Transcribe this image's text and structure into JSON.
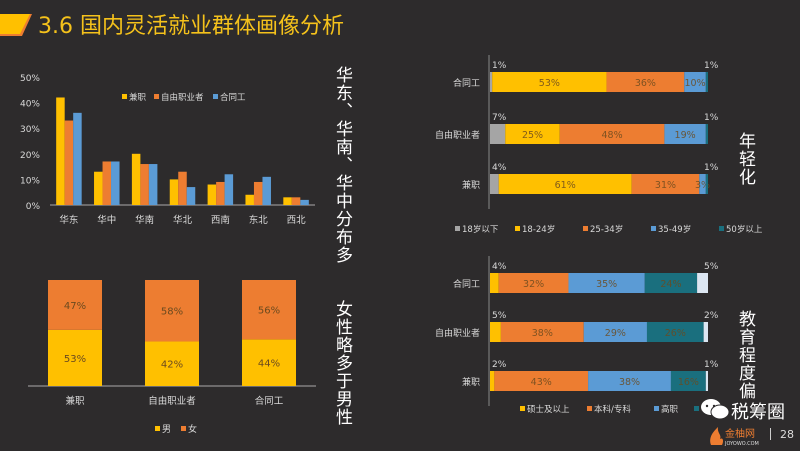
{
  "header": {
    "title": "3.6 国内灵活就业群体画像分析"
  },
  "side_notes": {
    "region": "华东、华南、华中分布多",
    "age": "年轻化",
    "gender": "女性略多于男性",
    "education": "教育程度偏"
  },
  "colors": {
    "yellow": "#FFC000",
    "orange": "#ED7D31",
    "blue": "#5B9BD5",
    "teal": "#1A6F7E",
    "gray": "#A5A5A5",
    "light": "#DCE6F2",
    "bg": "#2d2b2c",
    "title": "#f5c21b"
  },
  "footer": {
    "watermark": "税筹圈",
    "logo": "金柚网",
    "logo_sub": "JOYOWO.COM",
    "page": "28"
  },
  "chart_data": [
    {
      "type": "bar",
      "title": "",
      "categories": [
        "华东",
        "华中",
        "华南",
        "华北",
        "西南",
        "东北",
        "西北"
      ],
      "series": [
        {
          "name": "兼职",
          "values": [
            42,
            13,
            20,
            10,
            8,
            4,
            3
          ]
        },
        {
          "name": "自由职业者",
          "values": [
            33,
            17,
            16,
            13,
            9,
            9,
            3
          ]
        },
        {
          "name": "合同工",
          "values": [
            36,
            17,
            16,
            7,
            12,
            11,
            2
          ]
        }
      ],
      "yticks": [
        "0%",
        "10%",
        "20%",
        "30%",
        "40%",
        "50%"
      ],
      "ylim": [
        0,
        50
      ],
      "legend": "top-right"
    },
    {
      "type": "bar",
      "orientation": "horizontal-stacked",
      "categories": [
        "合同工",
        "自由职业者",
        "兼职"
      ],
      "series": [
        {
          "name": "18岁以下",
          "values": [
            1,
            7,
            4
          ]
        },
        {
          "name": "18-24岁",
          "values": [
            53,
            25,
            61
          ]
        },
        {
          "name": "25-34岁",
          "values": [
            36,
            48,
            31
          ]
        },
        {
          "name": "35-49岁",
          "values": [
            10,
            19,
            3
          ]
        },
        {
          "name": "50岁以上",
          "values": [
            1,
            1,
            1
          ]
        }
      ],
      "labels": [
        [
          "1%",
          "53%",
          "36%",
          "10%",
          "1%"
        ],
        [
          "7%",
          "25%",
          "48%",
          "19%",
          "1%"
        ],
        [
          "4%",
          "61%",
          "31%",
          "3%",
          "1%"
        ]
      ],
      "legend": "bottom"
    },
    {
      "type": "bar",
      "orientation": "vertical-stacked",
      "categories": [
        "兼职",
        "自由职业者",
        "合同工"
      ],
      "series": [
        {
          "name": "男",
          "values": [
            53,
            42,
            44
          ]
        },
        {
          "name": "女",
          "values": [
            47,
            58,
            56
          ]
        }
      ],
      "labels": [
        [
          "53%",
          "42%",
          "44%"
        ],
        [
          "47%",
          "58%",
          "56%"
        ]
      ],
      "legend": "bottom"
    },
    {
      "type": "bar",
      "orientation": "horizontal-stacked",
      "categories": [
        "合同工",
        "自由职业者",
        "兼职"
      ],
      "series": [
        {
          "name": "硕士及以上",
          "values": [
            4,
            5,
            2
          ]
        },
        {
          "name": "本科/专科",
          "values": [
            32,
            38,
            43
          ]
        },
        {
          "name": "高职",
          "values": [
            35,
            29,
            38
          ]
        },
        {
          "name": "中",
          "values": [
            24,
            26,
            16
          ]
        },
        {
          "name": "",
          "values": [
            5,
            2,
            1
          ]
        }
      ],
      "labels": [
        [
          "4%",
          "32%",
          "35%",
          "24%",
          "5%"
        ],
        [
          "5%",
          "38%",
          "29%",
          "26%",
          "2%"
        ],
        [
          "2%",
          "43%",
          "38%",
          "16%",
          "1%"
        ]
      ],
      "legend": "bottom"
    }
  ]
}
